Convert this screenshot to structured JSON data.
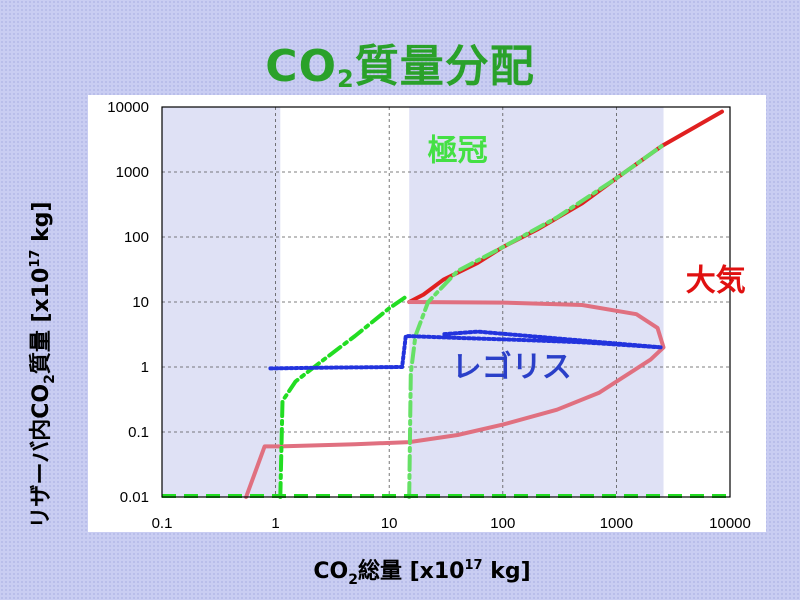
{
  "title": {
    "main": "CO",
    "sub": "2",
    "rest": "質量分配"
  },
  "chart_data": {
    "type": "line",
    "xscale": "log",
    "yscale": "log",
    "xlim": [
      0.1,
      10000
    ],
    "ylim": [
      0.01,
      10000
    ],
    "x_ticks": [
      "0.1",
      "1",
      "10",
      "100",
      "1000",
      "10000"
    ],
    "y_ticks": [
      "0.01",
      "0.1",
      "1",
      "10",
      "100",
      "1000",
      "10000"
    ],
    "xlabel": {
      "pre": "CO",
      "sub": "2",
      "post": "総量 [x10",
      "sup": "17",
      "tail": " kg]"
    },
    "ylabel": {
      "pre": "リザーバ内CO",
      "sub": "2",
      "post": "質量 [x10",
      "sup": "17",
      "tail": " kg]"
    },
    "grid": true,
    "shaded_x_ranges": [
      [
        0.1,
        1.1
      ],
      [
        15,
        2600
      ]
    ],
    "annotations": [
      {
        "text": "極冠",
        "x": 40,
        "y": 1500,
        "color": "#44e044"
      },
      {
        "text": "大気",
        "x": 7500,
        "y": 15,
        "color": "#e01010"
      },
      {
        "text": "レゴリス",
        "x": 120,
        "y": 0.7,
        "color": "#2a3fc8"
      }
    ],
    "series": [
      {
        "kind": "atmosphere-upper-branch",
        "color": "#e02020",
        "points": [
          [
            15,
            10
          ],
          [
            20,
            13
          ],
          [
            30,
            22
          ],
          [
            60,
            40
          ],
          [
            100,
            70
          ],
          [
            200,
            130
          ],
          [
            500,
            330
          ],
          [
            1000,
            800
          ],
          [
            2500,
            2500
          ],
          [
            5000,
            5000
          ],
          [
            8500,
            8500
          ]
        ]
      },
      {
        "kind": "atmosphere-loop",
        "color": "#e07080",
        "points": [
          [
            0.55,
            0.01
          ],
          [
            0.8,
            0.06
          ],
          [
            1.1,
            0.06
          ],
          [
            5,
            0.065
          ],
          [
            15,
            0.07
          ],
          [
            40,
            0.09
          ],
          [
            100,
            0.13
          ],
          [
            300,
            0.22
          ],
          [
            700,
            0.4
          ],
          [
            1300,
            0.8
          ],
          [
            2000,
            1.3
          ],
          [
            2600,
            2.0
          ],
          [
            2300,
            4.0
          ],
          [
            1500,
            6.5
          ],
          [
            500,
            9.0
          ],
          [
            100,
            9.8
          ],
          [
            15,
            10
          ]
        ]
      },
      {
        "kind": "polar-cap-low",
        "color": "#22dd22",
        "points": [
          [
            1.1,
            0.01
          ],
          [
            1.15,
            0.3
          ],
          [
            1.5,
            0.6
          ],
          [
            2.5,
            1.2
          ],
          [
            5,
            3.0
          ],
          [
            10,
            8.0
          ],
          [
            14,
            12
          ]
        ]
      },
      {
        "kind": "polar-cap-high",
        "color": "#66e066",
        "points": [
          [
            15,
            0.01
          ],
          [
            15.5,
            0.8
          ],
          [
            17,
            3.0
          ],
          [
            22,
            10
          ],
          [
            40,
            30
          ],
          [
            100,
            70
          ],
          [
            300,
            200
          ],
          [
            1000,
            800
          ],
          [
            2500,
            2500
          ]
        ]
      },
      {
        "kind": "regolith",
        "color": "#2233dd",
        "points": [
          [
            0.9,
            0.95
          ],
          [
            3,
            0.98
          ],
          [
            13,
            1.0
          ],
          [
            14,
            3.0
          ],
          [
            40,
            2.8
          ],
          [
            150,
            2.6
          ],
          [
            500,
            2.4
          ],
          [
            2500,
            2.0
          ],
          [
            60,
            3.5
          ],
          [
            30,
            3.2
          ]
        ]
      }
    ]
  }
}
